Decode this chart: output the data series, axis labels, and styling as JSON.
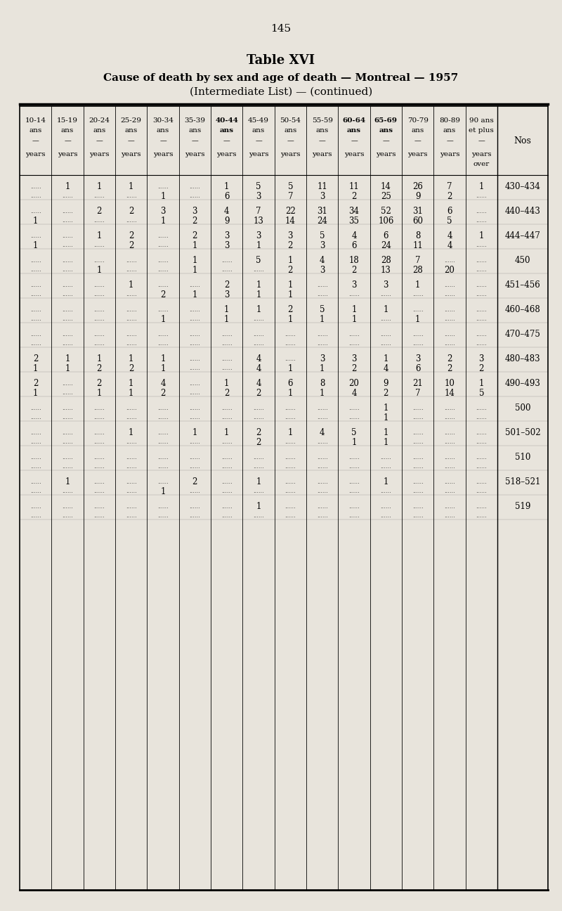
{
  "page_number": "145",
  "title_line1": "Table XVI",
  "title_line2": "Cause of death by sex and age of death — Montreal — 1957",
  "title_line3": "(Intermediate List) — (continued)",
  "bg_color": "#e8e4dc",
  "col_headers": [
    "10-14\nans\n—\nyears",
    "15-19\nans\n—\nyears",
    "20-24\nans\n—\nyears",
    "25-29\nans\n—\nyears",
    "30-34\nans\n—\nyears",
    "35-39\nans\n—\nyears",
    "40-44\nans\n—\nyears",
    "45-49\nans\n—\nyears",
    "50-54\nans\n—\nyears",
    "55-59\nans\n—\nyears",
    "60-64\nans\n—\nyears",
    "65-69\nans\n—\nyears",
    "70-79\nans\n—\nyears",
    "80-89\nans\n—\nyears",
    "90 ans\net plus\n—\nyears\nover",
    "Nos"
  ],
  "rows": [
    {
      "nos": "430–434",
      "sub": 1,
      "data": [
        [
          "",
          "1",
          "1",
          "1",
          "",
          "",
          "1",
          "5",
          "5",
          "11",
          "11",
          "14",
          "26",
          "7",
          "1"
        ],
        [
          "",
          "",
          "",
          "",
          "1",
          "",
          "6",
          "3",
          "7",
          "3",
          "2",
          "25",
          "9",
          "2",
          ""
        ]
      ]
    },
    {
      "nos": "440–443",
      "sub": 1,
      "data": [
        [
          "",
          "",
          "2",
          "2",
          "3",
          "3",
          "4",
          "7",
          "22",
          "31",
          "34",
          "52",
          "31",
          "6",
          ""
        ],
        [
          "1",
          "",
          "",
          "",
          "1",
          "2",
          "9",
          "13",
          "14",
          "24",
          "35",
          "106",
          "60",
          "5",
          ""
        ]
      ]
    },
    {
      "nos": "444–447",
      "sub": 1,
      "data": [
        [
          "",
          "",
          "1",
          "2",
          "",
          "2",
          "3",
          "3",
          "3",
          "5",
          "4",
          "6",
          "8",
          "4",
          "1"
        ],
        [
          "1",
          "",
          "",
          "2",
          "",
          "1",
          "3",
          "1",
          "2",
          "3",
          "6",
          "24",
          "11",
          "4",
          ""
        ]
      ]
    },
    {
      "nos": "450",
      "sub": 1,
      "data": [
        [
          "",
          "",
          "",
          "",
          "",
          "1",
          "",
          "5",
          "1",
          "4",
          "18",
          "28",
          "7",
          "",
          ""
        ],
        [
          "",
          "",
          "1",
          "",
          "",
          "1",
          "",
          "",
          "2",
          "3",
          "2",
          "13",
          "28",
          "20",
          ""
        ]
      ]
    },
    {
      "nos": "451–456",
      "sub": 1,
      "data": [
        [
          "",
          "",
          "",
          "1",
          "",
          "",
          "2",
          "1",
          "1",
          "",
          "3",
          "3",
          "1",
          "",
          ""
        ],
        [
          "",
          "",
          "",
          "",
          "2",
          "1",
          "3",
          "1",
          "1",
          "",
          "",
          "",
          "",
          "",
          ""
        ]
      ]
    },
    {
      "nos": "460–468",
      "sub": 1,
      "data": [
        [
          "",
          "",
          "",
          "",
          "",
          "",
          "1",
          "1",
          "2",
          "5",
          "1",
          "1",
          "",
          "",
          ""
        ],
        [
          "",
          "",
          "",
          "",
          "1",
          "",
          "1",
          "",
          "1",
          "1",
          "1",
          "",
          "1",
          "",
          ""
        ]
      ]
    },
    {
      "nos": "470–475",
      "sub": 1,
      "data": [
        [
          "",
          "",
          "",
          "",
          "",
          "",
          "",
          "",
          "",
          "",
          "",
          "",
          "",
          "",
          ""
        ],
        [
          "",
          "",
          "",
          "",
          "",
          "",
          "",
          "",
          "",
          "",
          "",
          "",
          "",
          "",
          ""
        ]
      ]
    },
    {
      "nos": "480–483",
      "sub": 1,
      "data": [
        [
          "2",
          "1",
          "1",
          "1",
          "1",
          "",
          "",
          "4",
          "",
          "3",
          "3",
          "1",
          "3",
          "2",
          "3"
        ],
        [
          "1",
          "1",
          "2",
          "2",
          "1",
          "",
          "",
          "4",
          "1",
          "1",
          "2",
          "4",
          "6",
          "2",
          "2"
        ]
      ]
    },
    {
      "nos": "490–493",
      "sub": 1,
      "data": [
        [
          "2",
          "",
          "2",
          "1",
          "4",
          "",
          "1",
          "4",
          "6",
          "8",
          "20",
          "9",
          "21",
          "10",
          "1"
        ],
        [
          "1",
          "",
          "1",
          "1",
          "2",
          "",
          "2",
          "2",
          "1",
          "1",
          "4",
          "2",
          "7",
          "14",
          "5"
        ]
      ]
    },
    {
      "nos": "500",
      "sub": 1,
      "data": [
        [
          "",
          "",
          "",
          "",
          "",
          "",
          "",
          "",
          "",
          "",
          "",
          "1",
          "",
          "",
          ""
        ],
        [
          "",
          "",
          "",
          "",
          "",
          "",
          "",
          "",
          "",
          "",
          "",
          "1",
          "",
          "",
          ""
        ]
      ]
    },
    {
      "nos": "501–502",
      "sub": 1,
      "data": [
        [
          "",
          "",
          "",
          "1",
          "",
          "1",
          "1",
          "2",
          "1",
          "4",
          "5",
          "1",
          "",
          "",
          ""
        ],
        [
          "",
          "",
          "",
          "",
          "",
          "",
          "",
          "2",
          "",
          "",
          "1",
          "1",
          "",
          "",
          ""
        ]
      ]
    },
    {
      "nos": "510",
      "sub": 1,
      "data": [
        [
          "",
          "",
          "",
          "",
          "",
          "",
          "",
          "",
          "",
          "",
          "",
          "",
          "",
          "",
          ""
        ],
        [
          "",
          "",
          "",
          "",
          "",
          "",
          "",
          "",
          "",
          "",
          "",
          "",
          "",
          "",
          ""
        ]
      ]
    },
    {
      "nos": "518–521",
      "sub": 1,
      "data": [
        [
          "",
          "1",
          "",
          "",
          "",
          "2",
          "",
          "1",
          "",
          "",
          "",
          "1",
          "",
          "",
          ""
        ],
        [
          "",
          "",
          "",
          "",
          "1",
          "",
          "",
          "",
          "",
          "",
          "",
          "",
          "",
          "",
          ""
        ]
      ]
    },
    {
      "nos": "519",
      "sub": 1,
      "data": [
        [
          "",
          "",
          "",
          "",
          "",
          "",
          "",
          "1",
          "",
          "",
          "",
          "",
          "",
          "",
          ""
        ],
        [
          "",
          "",
          "",
          "",
          "",
          "",
          "",
          "",
          "",
          "",
          "",
          "",
          "",
          "",
          ""
        ]
      ]
    }
  ]
}
